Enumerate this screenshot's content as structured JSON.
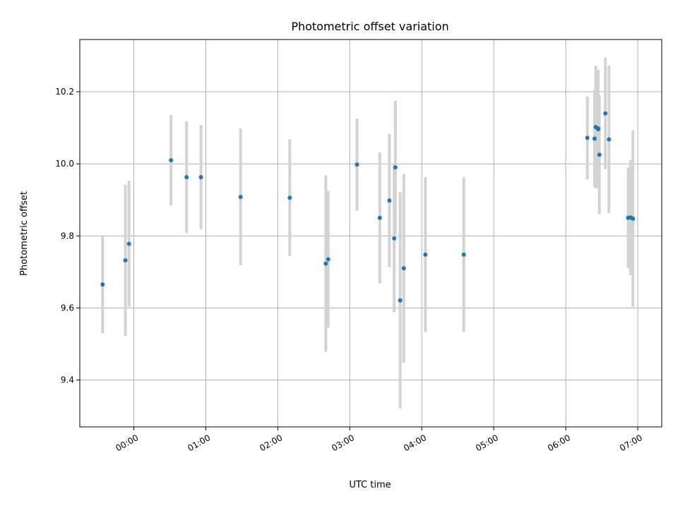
{
  "chart_data": {
    "type": "scatter",
    "title": "Photometric offset variation",
    "xlabel": "UTC time",
    "ylabel": "Photometric offset",
    "xlim": [
      "23:15",
      "07:20"
    ],
    "ylim": [
      9.27,
      10.345
    ],
    "grid": true,
    "x_ticks": [
      "00:00",
      "01:00",
      "02:00",
      "03:00",
      "04:00",
      "05:00",
      "06:00",
      "07:00"
    ],
    "y_ticks": [
      9.4,
      9.6,
      9.8,
      10.0,
      10.2
    ],
    "y_tick_labels": [
      "9.4",
      "9.6",
      "9.8",
      "10.0",
      "10.2"
    ],
    "colors": {
      "point": "#1f77b4",
      "errorbar": "#d3d3d3",
      "grid": "#b0b0b0"
    },
    "series": [
      {
        "x": [
          "23:34",
          "23:53",
          "23:56",
          "00:31",
          "00:44",
          "00:56",
          "01:29",
          "02:10",
          "02:40",
          "02:42",
          "03:06",
          "03:25",
          "03:33",
          "03:37",
          "03:38",
          "03:42",
          "03:45",
          "04:03",
          "04:35",
          "06:18",
          "06:24",
          "06:25",
          "06:27",
          "06:27",
          "06:28",
          "06:33",
          "06:36",
          "06:52",
          "06:54",
          "06:56"
        ],
        "y": [
          9.665,
          9.732,
          9.778,
          10.01,
          9.963,
          9.963,
          9.908,
          9.906,
          9.723,
          9.735,
          9.998,
          9.85,
          9.898,
          9.793,
          9.99,
          9.621,
          9.71,
          9.748,
          9.748,
          10.072,
          10.07,
          10.102,
          10.096,
          10.098,
          10.025,
          10.14,
          10.068,
          9.85,
          9.851,
          9.848
        ],
        "yerr": [
          0.135,
          0.21,
          0.175,
          0.125,
          0.155,
          0.145,
          0.19,
          0.162,
          0.245,
          0.19,
          0.128,
          0.182,
          0.185,
          0.205,
          0.185,
          0.3,
          0.262,
          0.215,
          0.215,
          0.115,
          0.135,
          0.17,
          0.165,
          0.14,
          0.165,
          0.155,
          0.205,
          0.14,
          0.16,
          0.245
        ]
      }
    ]
  }
}
